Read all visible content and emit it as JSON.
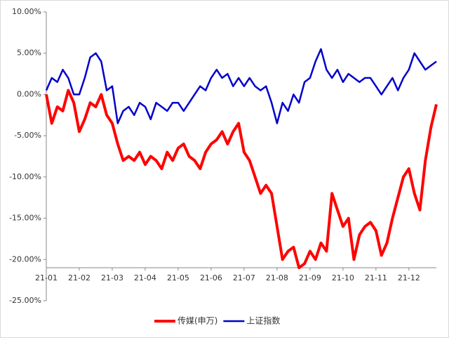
{
  "chart_data": {
    "type": "line",
    "categories": [
      "21-01",
      null,
      null,
      null,
      null,
      null,
      "21-02",
      null,
      null,
      null,
      null,
      null,
      "21-03",
      null,
      null,
      null,
      null,
      null,
      "21-04",
      null,
      null,
      null,
      null,
      null,
      "21-05",
      null,
      null,
      null,
      null,
      null,
      "21-06",
      null,
      null,
      null,
      null,
      null,
      "21-07",
      null,
      null,
      null,
      null,
      null,
      "21-08",
      null,
      null,
      null,
      null,
      null,
      "21-09",
      null,
      null,
      null,
      null,
      null,
      "21-10",
      null,
      null,
      null,
      null,
      null,
      "21-11",
      null,
      null,
      null,
      null,
      null,
      "21-12",
      null,
      null,
      null,
      null,
      null
    ],
    "series": [
      {
        "name": "传媒(申万)",
        "color": "#ff0000",
        "values": [
          0,
          -3.5,
          -1.5,
          -2,
          0.5,
          -1,
          -4.5,
          -3,
          -1,
          -1.5,
          0,
          -2.5,
          -3.5,
          -6,
          -8,
          -7.5,
          -8,
          -7,
          -8.5,
          -7.5,
          -8,
          -9,
          -7,
          -8,
          -6.5,
          -6,
          -7.5,
          -8,
          -9,
          -7,
          -6,
          -5.5,
          -4.5,
          -6,
          -4.5,
          -3.5,
          -7,
          -8,
          -10,
          -12,
          -11,
          -12,
          -16,
          -20,
          -19,
          -18.5,
          -21,
          -20.5,
          -19,
          -20,
          -18,
          -19,
          -12,
          -14,
          -16,
          -15,
          -20,
          -17,
          -16,
          -15.5,
          -16.5,
          -19.5,
          -18,
          -15,
          -12.5,
          -10,
          -9,
          -12,
          -14,
          -8,
          -4,
          -1.2
        ]
      },
      {
        "name": "上证指数",
        "color": "#0000cc",
        "values": [
          0.5,
          2,
          1.5,
          3,
          2,
          0,
          0,
          2,
          4.5,
          5,
          4,
          0.5,
          1,
          -3.5,
          -2,
          -1.5,
          -2.5,
          -1,
          -1.5,
          -3,
          -1,
          -1.5,
          -2,
          -1,
          -1,
          -2,
          -1,
          0,
          1,
          0.5,
          2,
          3,
          2,
          2.5,
          1,
          2,
          1,
          2,
          1,
          0.5,
          1,
          -1,
          -3.5,
          -1,
          -2,
          0,
          -1,
          1.5,
          2,
          4,
          5.5,
          3,
          2,
          3,
          1.5,
          2.5,
          2,
          1.5,
          2,
          2,
          1,
          0,
          1,
          2,
          0.5,
          2,
          3,
          5,
          4,
          3,
          3.5,
          4
        ]
      }
    ],
    "ylim": [
      -25,
      10
    ],
    "yticks": [
      {
        "value": -25,
        "label": "-25.00%"
      },
      {
        "value": -20,
        "label": "-20.00%"
      },
      {
        "value": -15,
        "label": "-15.00%"
      },
      {
        "value": -10,
        "label": "-10.00%"
      },
      {
        "value": -5,
        "label": "-5.00%"
      },
      {
        "value": 0,
        "label": "0.00%"
      },
      {
        "value": 5,
        "label": "5.00%"
      },
      {
        "value": 10,
        "label": "10.00%"
      }
    ],
    "x_axis_at": -21,
    "legend": "bottom"
  }
}
